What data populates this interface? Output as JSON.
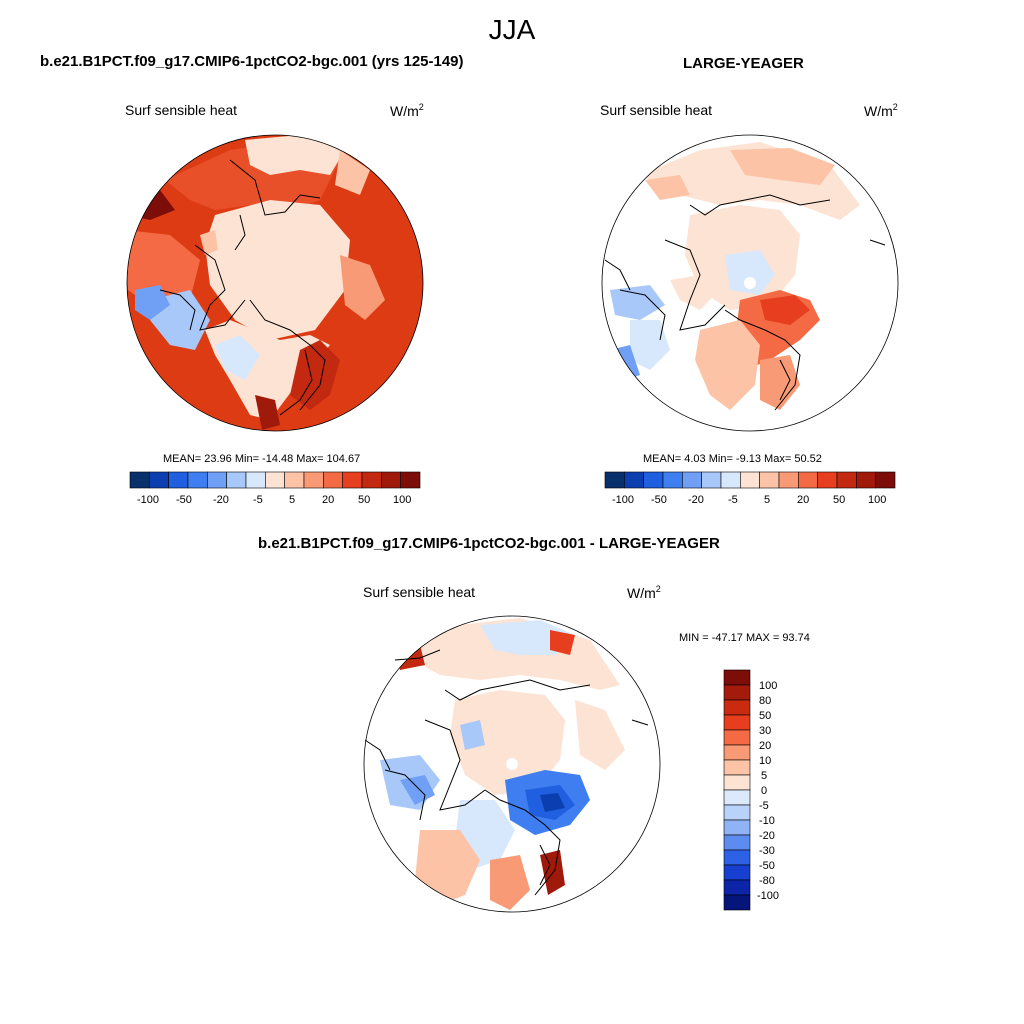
{
  "title": "JJA",
  "panels": [
    {
      "case": "b.e21.B1PCT.f09_g17.CMIP6-1pctCO2-bgc.001 (yrs 125-149)",
      "variable": "Surf sensible heat",
      "units": "W/m",
      "units_sup": "2",
      "stats": "MEAN=  23.96  Min= -14.48  Max= 104.67"
    },
    {
      "case": "LARGE-YEAGER",
      "variable": "Surf sensible heat",
      "units": "W/m",
      "units_sup": "2",
      "stats": "MEAN=   4.03  Min=  -9.13  Max=  50.52"
    }
  ],
  "horizontal_colorbar": {
    "labels": [
      "-100",
      "-50",
      "-20",
      "-5",
      "5",
      "20",
      "50",
      "100"
    ],
    "colors": [
      "#08306b",
      "#0b3fb0",
      "#1f5fe0",
      "#3e7ef0",
      "#6fa0f5",
      "#a8c8fa",
      "#d8e8fc",
      "#fde3d3",
      "#fcc3a6",
      "#f99a76",
      "#f36a45",
      "#e63e1f",
      "#c32810",
      "#a01a0b",
      "#7d0d08"
    ]
  },
  "difference": {
    "title": "b.e21.B1PCT.f09_g17.CMIP6-1pctCO2-bgc.001 - LARGE-YEAGER",
    "variable": "Surf sensible heat",
    "units": "W/m",
    "units_sup": "2",
    "stats": "MIN = -47.17 MAX =  93.74",
    "colorbar_labels": [
      "100",
      "80",
      "50",
      "30",
      "20",
      "10",
      "5",
      "0",
      "-5",
      "-10",
      "-20",
      "-30",
      "-50",
      "-80",
      "-100"
    ],
    "colorbar_colors": [
      "#7d0d08",
      "#a31b0b",
      "#c92a10",
      "#e63e1f",
      "#f36a45",
      "#f99a76",
      "#fcc3a6",
      "#fde3d3",
      "#dbe9fb",
      "#b9d2fa",
      "#8fb3f5",
      "#5d8cf0",
      "#2e62e6",
      "#1840d0",
      "#0b24a8",
      "#05157a"
    ]
  }
}
